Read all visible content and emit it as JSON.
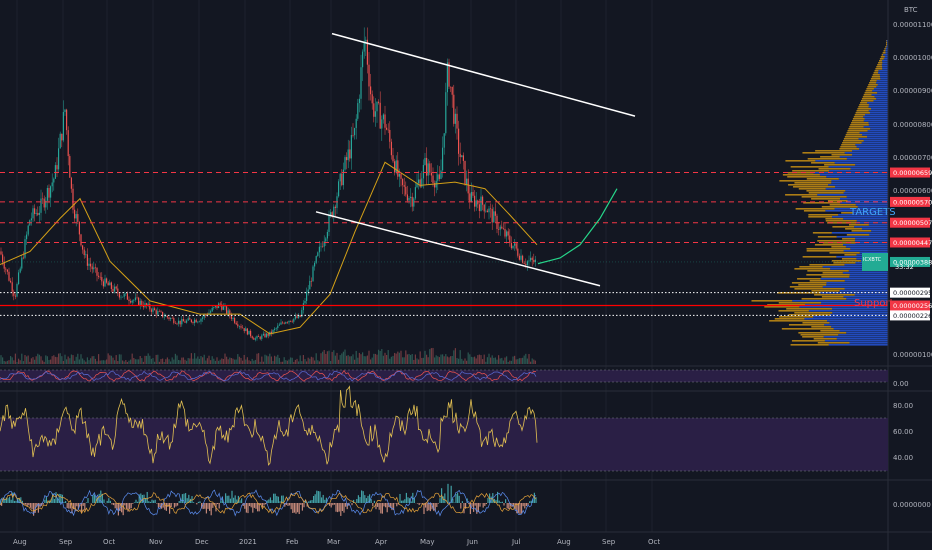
{
  "chart_data": [
    {
      "type": "candlestick",
      "currency": "BTC",
      "symbol": "ICXBTC",
      "countdown": "33:32",
      "xlabels": [
        "Aug",
        "Sep",
        "Oct",
        "Nov",
        "Dec",
        "2021",
        "Feb",
        "Mar",
        "Apr",
        "May",
        "Jun",
        "Jul",
        "Aug",
        "Sep",
        "Oct"
      ],
      "ylabels": [
        "0.00001100",
        "0.00001000",
        "0.00000900",
        "0.00000800",
        "0.00000700",
        "0.00000600",
        "0.00000100"
      ],
      "ylim": [
        5e-07,
        1.13e-05
      ],
      "price_path": [
        [
          0,
          4.2e-06
        ],
        [
          15,
          2.85e-06
        ],
        [
          30,
          5.2e-06
        ],
        [
          40,
          5.5e-06
        ],
        [
          55,
          6.5e-06
        ],
        [
          65,
          8.5e-06
        ],
        [
          72,
          5.8e-06
        ],
        [
          85,
          4e-06
        ],
        [
          100,
          3.35e-06
        ],
        [
          120,
          2.9e-06
        ],
        [
          140,
          2.65e-06
        ],
        [
          160,
          2.3e-06
        ],
        [
          180,
          2.05e-06
        ],
        [
          200,
          2.15e-06
        ],
        [
          220,
          2.6e-06
        ],
        [
          235,
          2.1e-06
        ],
        [
          255,
          1.55e-06
        ],
        [
          270,
          1.7e-06
        ],
        [
          285,
          2.1e-06
        ],
        [
          300,
          2.2e-06
        ],
        [
          315,
          3.8e-06
        ],
        [
          330,
          5.2e-06
        ],
        [
          345,
          6.8e-06
        ],
        [
          355,
          7.8e-06
        ],
        [
          365,
          1.08e-05
        ],
        [
          372,
          8.6e-06
        ],
        [
          385,
          8.1e-06
        ],
        [
          400,
          6.2e-06
        ],
        [
          412,
          5.8e-06
        ],
        [
          425,
          6.8e-06
        ],
        [
          440,
          6.2e-06
        ],
        [
          448,
          9.8e-06
        ],
        [
          458,
          7.4e-06
        ],
        [
          470,
          5.8e-06
        ],
        [
          485,
          5.6e-06
        ],
        [
          500,
          4.9e-06
        ],
        [
          515,
          4.3e-06
        ],
        [
          525,
          3.9e-06
        ],
        [
          537,
          3.88e-06
        ]
      ],
      "ma_path": [
        [
          0,
          3.8e-06
        ],
        [
          30,
          4.2e-06
        ],
        [
          60,
          5.2e-06
        ],
        [
          80,
          5.8e-06
        ],
        [
          110,
          3.9e-06
        ],
        [
          150,
          2.7e-06
        ],
        [
          200,
          2.3e-06
        ],
        [
          240,
          2.3e-06
        ],
        [
          270,
          1.7e-06
        ],
        [
          300,
          1.9e-06
        ],
        [
          330,
          2.9e-06
        ],
        [
          355,
          4.8e-06
        ],
        [
          385,
          6.9e-06
        ],
        [
          420,
          6.2e-06
        ],
        [
          455,
          6.3e-06
        ],
        [
          485,
          6.1e-06
        ],
        [
          510,
          5.3e-06
        ],
        [
          537,
          4.4e-06
        ]
      ],
      "trendlines": [
        {
          "from": [
            332,
            1.08e-05
          ],
          "to": [
            635,
            8.3e-06
          ],
          "color": "#ffffff"
        },
        {
          "from": [
            316,
            5.4e-06
          ],
          "to": [
            600,
            3.16e-06
          ],
          "color": "#ffffff"
        }
      ],
      "projection_curve": {
        "color": "#26d68a",
        "points": [
          [
            538,
            3.83e-06
          ],
          [
            560,
            4e-06
          ],
          [
            580,
            4.4e-06
          ],
          [
            600,
            5.2e-06
          ],
          [
            617,
            6.1e-06
          ]
        ]
      },
      "horizontal_levels": [
        {
          "price": "0.00000659",
          "value": 6.59e-06,
          "color": "#f23645",
          "style": "dashed",
          "tag_color": "#f23645"
        },
        {
          "price": "0.00000570",
          "value": 5.7e-06,
          "color": "#f23645",
          "style": "dashed",
          "tag_color": "#f23645"
        },
        {
          "price": "0.00000507",
          "value": 5.07e-06,
          "color": "#f23645",
          "style": "dashed",
          "tag_color": "#f23645"
        },
        {
          "price": "0.00000447",
          "value": 4.47e-06,
          "color": "#f23645",
          "style": "dashed",
          "tag_color": "#f23645"
        },
        {
          "price": "0.00000388",
          "value": 3.88e-06,
          "color": "#22ab94",
          "style": "current",
          "tag_color": "#22ab94"
        },
        {
          "price": "0.00000295",
          "value": 2.95e-06,
          "color": "#ffffff",
          "style": "dotted",
          "tag_color": "#ffffff"
        },
        {
          "price": "0.00000256",
          "value": 2.56e-06,
          "color": "#ff0000",
          "style": "solid",
          "tag_color": "#f23645"
        },
        {
          "price": "0.00000226",
          "value": 2.26e-06,
          "color": "#ffffff",
          "style": "dotted",
          "tag_color": "#ffffff"
        }
      ],
      "annotations": [
        {
          "text": "TARGETS",
          "color": "#42a5f5"
        },
        {
          "text": "Support",
          "color": "#f23645"
        }
      ]
    },
    {
      "type": "line",
      "pane": "oscillator-1",
      "ylabels": [
        "0.00"
      ]
    },
    {
      "type": "line",
      "pane": "rsi",
      "ylabels": [
        "80.00",
        "60.00",
        "40.00"
      ],
      "levels": [
        70,
        30
      ],
      "line_color": "#e2c052"
    },
    {
      "type": "histogram",
      "pane": "oscillator-2",
      "ylabels": [
        "0.0000000"
      ]
    }
  ],
  "colors": {
    "background": "#131722",
    "up": "#26a69a",
    "down": "#ef5350",
    "ma": "#d4a017",
    "volume_profile_up": "#2962ff",
    "volume_profile_down": "#e0a012",
    "pane_fill": "#2a1f45"
  }
}
